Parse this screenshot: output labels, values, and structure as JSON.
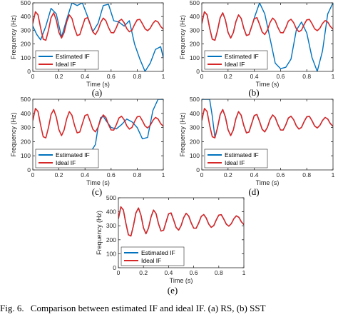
{
  "chart_data": [
    {
      "panel_label": "(a)",
      "type": "line",
      "xlabel": "Time (s)",
      "ylabel": "Frequency (Hz)",
      "xlim": [
        0,
        1
      ],
      "ylim": [
        0,
        500
      ],
      "xticks": [
        "0",
        "0.2",
        "0.4",
        "0.6",
        "0.8",
        "1"
      ],
      "yticks": [
        "0",
        "100",
        "200",
        "300",
        "400",
        "500"
      ],
      "legend": {
        "placement": "bottom-left"
      },
      "series": [
        {
          "name": "Estimated IF",
          "color": "#0072BD",
          "x": [
            0,
            0.03,
            0.06,
            0.1,
            0.14,
            0.18,
            0.22,
            0.26,
            0.3,
            0.34,
            0.38,
            0.42,
            0.46,
            0.5,
            0.54,
            0.58,
            0.62,
            0.66,
            0.7,
            0.74,
            0.78,
            0.82,
            0.86,
            0.9,
            0.94,
            0.98,
            1
          ],
          "y": [
            330,
            270,
            230,
            330,
            460,
            420,
            250,
            380,
            500,
            480,
            500,
            400,
            290,
            350,
            480,
            490,
            370,
            360,
            330,
            370,
            200,
            90,
            0,
            60,
            160,
            180,
            100
          ]
        },
        {
          "name": "Ideal IF",
          "color": "#D62728",
          "x": [
            0,
            0.02,
            0.04,
            0.06,
            0.08,
            0.1,
            0.12,
            0.14,
            0.16,
            0.18,
            0.2,
            0.22,
            0.24,
            0.26,
            0.28,
            0.3,
            0.32,
            0.34,
            0.36,
            0.38,
            0.4,
            0.42,
            0.44,
            0.46,
            0.48,
            0.5,
            0.52,
            0.54,
            0.56,
            0.58,
            0.6,
            0.62,
            0.64,
            0.66,
            0.68,
            0.7,
            0.72,
            0.74,
            0.76,
            0.78,
            0.8,
            0.82,
            0.84,
            0.86,
            0.88,
            0.9,
            0.92,
            0.94,
            0.96,
            0.98,
            1
          ],
          "y": [
            350,
            435,
            413,
            316,
            235,
            227,
            300,
            392,
            427,
            375,
            285,
            243,
            283,
            363,
            412,
            387,
            314,
            262,
            268,
            327,
            385,
            392,
            343,
            288,
            269,
            301,
            357,
            389,
            370,
            321,
            283,
            282,
            319,
            367,
            380,
            355,
            312,
            289,
            301,
            342,
            376,
            379,
            348,
            311,
            297,
            315,
            350,
            371,
            360,
            328,
            308
          ]
        }
      ]
    },
    {
      "panel_label": "(b)",
      "type": "line",
      "xlabel": "Time (s)",
      "ylabel": "Frequency (Hz)",
      "xlim": [
        0,
        1
      ],
      "ylim": [
        0,
        500
      ],
      "xticks": [
        "0",
        "0.2",
        "0.4",
        "0.6",
        "0.8",
        "1"
      ],
      "yticks": [
        "0",
        "100",
        "200",
        "300",
        "400",
        "500"
      ],
      "legend": {
        "placement": "bottom-left"
      },
      "series": [
        {
          "name": "Estimated IF",
          "color": "#0072BD",
          "x": [
            0,
            0.02,
            0.04,
            0.06,
            0.08,
            0.1,
            0.12,
            0.14,
            0.16,
            0.18,
            0.2,
            0.22,
            0.24,
            0.26,
            0.28,
            0.3,
            0.32,
            0.34,
            0.36,
            0.38,
            0.4,
            0.44,
            0.48,
            0.52,
            0.56,
            0.6,
            0.64,
            0.68,
            0.72,
            0.76,
            0.8,
            0.84,
            0.88,
            0.92,
            0.96,
            1
          ],
          "y": [
            350,
            435,
            413,
            316,
            235,
            227,
            300,
            392,
            427,
            375,
            285,
            243,
            283,
            363,
            412,
            387,
            314,
            262,
            268,
            327,
            390,
            500,
            420,
            240,
            60,
            20,
            30,
            90,
            300,
            360,
            280,
            100,
            0,
            150,
            420,
            500
          ]
        },
        {
          "name": "Ideal IF",
          "color": "#D62728",
          "x": [
            0,
            0.02,
            0.04,
            0.06,
            0.08,
            0.1,
            0.12,
            0.14,
            0.16,
            0.18,
            0.2,
            0.22,
            0.24,
            0.26,
            0.28,
            0.3,
            0.32,
            0.34,
            0.36,
            0.38,
            0.4,
            0.42,
            0.44,
            0.46,
            0.48,
            0.5,
            0.52,
            0.54,
            0.56,
            0.58,
            0.6,
            0.62,
            0.64,
            0.66,
            0.68,
            0.7,
            0.72,
            0.74,
            0.76,
            0.78,
            0.8,
            0.82,
            0.84,
            0.86,
            0.88,
            0.9,
            0.92,
            0.94,
            0.96,
            0.98,
            1
          ],
          "y": [
            350,
            435,
            413,
            316,
            235,
            227,
            300,
            392,
            427,
            375,
            285,
            243,
            283,
            363,
            412,
            387,
            314,
            262,
            268,
            327,
            385,
            392,
            343,
            288,
            269,
            301,
            357,
            389,
            370,
            321,
            283,
            282,
            319,
            367,
            380,
            355,
            312,
            289,
            301,
            342,
            376,
            379,
            348,
            311,
            297,
            315,
            350,
            371,
            360,
            328,
            308
          ]
        }
      ]
    },
    {
      "panel_label": "(c)",
      "type": "line",
      "xlabel": "Time (s)",
      "ylabel": "Frequency (Hz)",
      "xlim": [
        0,
        1
      ],
      "ylim": [
        0,
        500
      ],
      "xticks": [
        "0",
        "0.2",
        "0.4",
        "0.6",
        "0.8",
        "1"
      ],
      "yticks": [
        "0",
        "100",
        "200",
        "300",
        "400",
        "500"
      ],
      "legend": {
        "placement": "bottom-left"
      },
      "series": [
        {
          "name": "Estimated IF",
          "color": "#0072BD",
          "x": [
            0.4,
            0.44,
            0.48,
            0.5,
            0.52,
            0.54,
            0.56,
            0.6,
            0.64,
            0.68,
            0.72,
            0.76,
            0.8,
            0.84,
            0.88,
            0.92,
            0.96,
            1
          ],
          "y": [
            100,
            120,
            180,
            300,
            370,
            380,
            350,
            300,
            290,
            320,
            360,
            340,
            300,
            220,
            230,
            420,
            500,
            500
          ]
        },
        {
          "name": "Ideal IF",
          "color": "#D62728",
          "x": [
            0,
            0.02,
            0.04,
            0.06,
            0.08,
            0.1,
            0.12,
            0.14,
            0.16,
            0.18,
            0.2,
            0.22,
            0.24,
            0.26,
            0.28,
            0.3,
            0.32,
            0.34,
            0.36,
            0.38,
            0.4,
            0.42,
            0.44,
            0.46,
            0.48,
            0.5,
            0.52,
            0.54,
            0.56,
            0.58,
            0.6,
            0.62,
            0.64,
            0.66,
            0.68,
            0.7,
            0.72,
            0.74,
            0.76,
            0.78,
            0.8,
            0.82,
            0.84,
            0.86,
            0.88,
            0.9,
            0.92,
            0.94,
            0.96,
            0.98,
            1
          ],
          "y": [
            350,
            435,
            413,
            316,
            235,
            227,
            300,
            392,
            427,
            375,
            285,
            243,
            283,
            363,
            412,
            387,
            314,
            262,
            268,
            327,
            385,
            392,
            343,
            288,
            269,
            301,
            357,
            389,
            370,
            321,
            283,
            282,
            319,
            367,
            380,
            355,
            312,
            289,
            301,
            342,
            376,
            379,
            348,
            311,
            297,
            315,
            350,
            371,
            360,
            328,
            308
          ]
        }
      ]
    },
    {
      "panel_label": "(d)",
      "type": "line",
      "xlabel": "Time (s)",
      "ylabel": "Frequency (Hz)",
      "xlim": [
        0,
        1
      ],
      "ylim": [
        0,
        500
      ],
      "xticks": [
        "0",
        "0.2",
        "0.4",
        "0.6",
        "0.8",
        "1"
      ],
      "yticks": [
        "0",
        "100",
        "200",
        "300",
        "400",
        "500"
      ],
      "legend": {
        "placement": "bottom-left"
      },
      "series": [
        {
          "name": "Estimated IF",
          "color": "#0072BD",
          "x": [
            0,
            0.02,
            0.04,
            0.06,
            0.08,
            0.1,
            0.12,
            0.14,
            0.16,
            0.18,
            0.2,
            0.22,
            0.24,
            0.26,
            0.28,
            0.3,
            0.32,
            0.34,
            0.36,
            0.38,
            0.4,
            0.42,
            0.44,
            0.46,
            0.48,
            0.5,
            0.52,
            0.54,
            0.56,
            0.58,
            0.6,
            0.62,
            0.64,
            0.66,
            0.68,
            0.7,
            0.72,
            0.74,
            0.76,
            0.78,
            0.8,
            0.82,
            0.84,
            0.86,
            0.88,
            0.9,
            0.92,
            0.94,
            0.96,
            0.98,
            1
          ],
          "y": [
            500,
            500,
            500,
            500,
            380,
            230,
            300,
            392,
            427,
            375,
            285,
            243,
            283,
            363,
            412,
            387,
            314,
            262,
            268,
            327,
            385,
            392,
            343,
            288,
            269,
            301,
            357,
            389,
            370,
            321,
            283,
            282,
            319,
            367,
            380,
            355,
            312,
            289,
            301,
            342,
            376,
            379,
            348,
            311,
            297,
            315,
            350,
            371,
            360,
            328,
            308
          ]
        },
        {
          "name": "Ideal IF",
          "color": "#D62728",
          "x": [
            0,
            0.02,
            0.04,
            0.06,
            0.08,
            0.1,
            0.12,
            0.14,
            0.16,
            0.18,
            0.2,
            0.22,
            0.24,
            0.26,
            0.28,
            0.3,
            0.32,
            0.34,
            0.36,
            0.38,
            0.4,
            0.42,
            0.44,
            0.46,
            0.48,
            0.5,
            0.52,
            0.54,
            0.56,
            0.58,
            0.6,
            0.62,
            0.64,
            0.66,
            0.68,
            0.7,
            0.72,
            0.74,
            0.76,
            0.78,
            0.8,
            0.82,
            0.84,
            0.86,
            0.88,
            0.9,
            0.92,
            0.94,
            0.96,
            0.98,
            1
          ],
          "y": [
            350,
            435,
            413,
            316,
            235,
            227,
            300,
            392,
            427,
            375,
            285,
            243,
            283,
            363,
            412,
            387,
            314,
            262,
            268,
            327,
            385,
            392,
            343,
            288,
            269,
            301,
            357,
            389,
            370,
            321,
            283,
            282,
            319,
            367,
            380,
            355,
            312,
            289,
            301,
            342,
            376,
            379,
            348,
            311,
            297,
            315,
            350,
            371,
            360,
            328,
            308
          ]
        }
      ]
    },
    {
      "panel_label": "(e)",
      "type": "line",
      "xlabel": "Time (s)",
      "ylabel": "Frequency (Hz)",
      "xlim": [
        0,
        1
      ],
      "ylim": [
        0,
        500
      ],
      "xticks": [
        "0",
        "0.2",
        "0.4",
        "0.6",
        "0.8",
        "1"
      ],
      "yticks": [
        "0",
        "100",
        "200",
        "300",
        "400",
        "500"
      ],
      "legend": {
        "placement": "bottom-left"
      },
      "series": [
        {
          "name": "Estimated IF",
          "color": "#0072BD",
          "x": [
            0,
            0.02,
            0.04,
            0.06,
            0.08,
            0.1,
            0.12,
            0.14,
            0.16,
            0.18,
            0.2,
            0.22,
            0.24,
            0.26,
            0.28,
            0.3,
            0.32,
            0.34,
            0.36,
            0.38,
            0.4,
            0.42,
            0.44,
            0.46,
            0.48,
            0.5,
            0.52,
            0.54,
            0.56,
            0.58,
            0.6,
            0.62,
            0.64,
            0.66,
            0.68,
            0.7,
            0.72,
            0.74,
            0.76,
            0.78,
            0.8,
            0.82,
            0.84,
            0.86,
            0.88,
            0.9,
            0.92,
            0.94,
            0.96,
            0.98,
            1
          ],
          "y": [
            350,
            435,
            413,
            316,
            235,
            227,
            300,
            392,
            427,
            375,
            285,
            243,
            283,
            363,
            412,
            387,
            314,
            262,
            268,
            327,
            385,
            392,
            343,
            288,
            269,
            301,
            357,
            389,
            370,
            321,
            283,
            282,
            319,
            367,
            380,
            355,
            312,
            289,
            301,
            342,
            376,
            379,
            348,
            311,
            297,
            315,
            350,
            371,
            360,
            328,
            308
          ]
        },
        {
          "name": "Ideal IF",
          "color": "#D62728",
          "x": [
            0,
            0.02,
            0.04,
            0.06,
            0.08,
            0.1,
            0.12,
            0.14,
            0.16,
            0.18,
            0.2,
            0.22,
            0.24,
            0.26,
            0.28,
            0.3,
            0.32,
            0.34,
            0.36,
            0.38,
            0.4,
            0.42,
            0.44,
            0.46,
            0.48,
            0.5,
            0.52,
            0.54,
            0.56,
            0.58,
            0.6,
            0.62,
            0.64,
            0.66,
            0.68,
            0.7,
            0.72,
            0.74,
            0.76,
            0.78,
            0.8,
            0.82,
            0.84,
            0.86,
            0.88,
            0.9,
            0.92,
            0.94,
            0.96,
            0.98,
            1
          ],
          "y": [
            350,
            435,
            413,
            316,
            235,
            227,
            300,
            392,
            427,
            375,
            285,
            243,
            283,
            363,
            412,
            387,
            314,
            262,
            268,
            327,
            385,
            392,
            343,
            288,
            269,
            301,
            357,
            389,
            370,
            321,
            283,
            282,
            319,
            367,
            380,
            355,
            312,
            289,
            301,
            342,
            376,
            379,
            348,
            311,
            297,
            315,
            350,
            371,
            360,
            328,
            308
          ]
        }
      ]
    }
  ],
  "caption": {
    "prefix": "Fig. 6.",
    "text": "Comparison between estimated IF and ideal IF. (a) RS, (b) SST"
  }
}
